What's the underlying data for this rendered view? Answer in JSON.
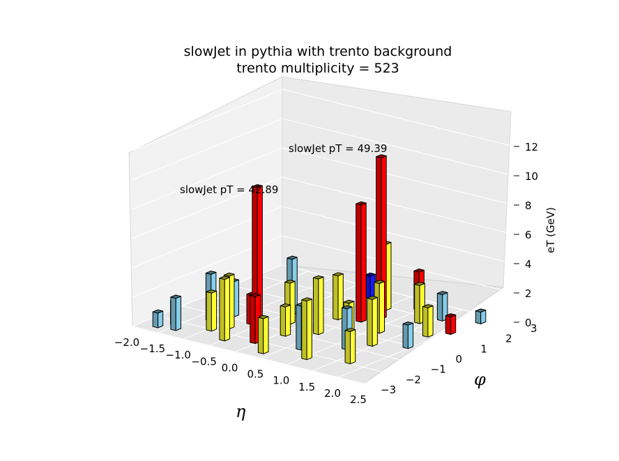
{
  "chart_data": {
    "type": "bar3d",
    "title": [
      "slowJet in pythia with trento background",
      "trento multiplicity = 523"
    ],
    "xlabel": "η",
    "ylabel": "φ",
    "zlabel": "eT (GeV)",
    "xlim": [
      -2.0,
      2.5
    ],
    "ylim": [
      -3,
      3
    ],
    "zlim": [
      0,
      12
    ],
    "xticks": [
      "−2.0",
      "−1.5",
      "−1.0",
      "−0.5",
      "0.0",
      "0.5",
      "1.0",
      "1.5",
      "2.0",
      "2.5"
    ],
    "yticks": [
      "−3",
      "−2",
      "−1",
      "0",
      "1",
      "2",
      "3"
    ],
    "zticks": [
      "0",
      "2",
      "4",
      "6",
      "8",
      "10",
      "12"
    ],
    "annotations": [
      {
        "text": "slowJet pT = 42.89",
        "eta": -0.3,
        "phi": 0.6,
        "z": 9.5
      },
      {
        "text": "slowJet pT = 49.39",
        "eta": 0.9,
        "phi": 1.3,
        "z": 11.0
      }
    ],
    "colors": {
      "background_soft": "#87ceeb",
      "background_hard": "#ffff33",
      "jet": "#ff0000",
      "other": "#1a1aff",
      "zero": "#a9a9a9"
    },
    "bars": [
      {
        "eta": -0.3,
        "phi": -1.5,
        "z": 10.0,
        "kind": "jet"
      },
      {
        "eta": 0.75,
        "phi": 1.3,
        "z": 11.0,
        "kind": "jet"
      },
      {
        "eta": 0.6,
        "phi": 0.8,
        "z": 8.0,
        "kind": "jet"
      },
      {
        "eta": 0.0,
        "phi": 2.4,
        "z": 1.5,
        "kind": "other"
      },
      {
        "eta": -1.7,
        "phi": -2.6,
        "z": 1.0,
        "kind": "background_soft"
      },
      {
        "eta": -1.55,
        "phi": -2.2,
        "z": 1.6,
        "kind": "background_soft"
      },
      {
        "eta": -1.4,
        "phi": -2.5,
        "z": 2.2,
        "kind": "background_soft"
      },
      {
        "eta": -1.25,
        "phi": -1.4,
        "z": 3.2,
        "kind": "background_soft"
      },
      {
        "eta": -1.1,
        "phi": -0.8,
        "z": 2.4,
        "kind": "background_soft"
      },
      {
        "eta": -0.95,
        "phi": -2.0,
        "z": 2.6,
        "kind": "background_hard"
      },
      {
        "eta": -0.8,
        "phi": -1.6,
        "z": 3.6,
        "kind": "background_hard"
      },
      {
        "eta": -0.65,
        "phi": -1.0,
        "z": 2.0,
        "kind": "jet"
      },
      {
        "eta": -0.5,
        "phi": -2.4,
        "z": 4.2,
        "kind": "background_hard"
      },
      {
        "eta": -0.45,
        "phi": 0.2,
        "z": 3.8,
        "kind": "background_soft"
      },
      {
        "eta": -0.2,
        "phi": -0.4,
        "z": 2.8,
        "kind": "background_hard"
      },
      {
        "eta": -0.05,
        "phi": -2.1,
        "z": 3.2,
        "kind": "jet"
      },
      {
        "eta": 0.1,
        "phi": -1.2,
        "z": 2.0,
        "kind": "background_hard"
      },
      {
        "eta": 0.25,
        "phi": 0.6,
        "z": 3.0,
        "kind": "background_hard"
      },
      {
        "eta": 0.35,
        "phi": -2.6,
        "z": 2.4,
        "kind": "background_hard"
      },
      {
        "eta": 0.45,
        "phi": -0.6,
        "z": 3.8,
        "kind": "background_hard"
      },
      {
        "eta": 0.55,
        "phi": 1.9,
        "z": 4.5,
        "kind": "background_hard"
      },
      {
        "eta": 0.7,
        "phi": -1.8,
        "z": 3.0,
        "kind": "background_soft"
      },
      {
        "eta": 0.85,
        "phi": -0.2,
        "z": 2.2,
        "kind": "background_hard"
      },
      {
        "eta": 0.95,
        "phi": 2.4,
        "z": 2.6,
        "kind": "jet"
      },
      {
        "eta": 1.05,
        "phi": -2.3,
        "z": 4.0,
        "kind": "background_hard"
      },
      {
        "eta": 1.15,
        "phi": 0.4,
        "z": 3.4,
        "kind": "background_hard"
      },
      {
        "eta": 1.25,
        "phi": -1.1,
        "z": 2.8,
        "kind": "background_soft"
      },
      {
        "eta": 1.35,
        "phi": 1.6,
        "z": 2.6,
        "kind": "background_hard"
      },
      {
        "eta": 1.45,
        "phi": -0.5,
        "z": 3.2,
        "kind": "background_hard"
      },
      {
        "eta": 1.55,
        "phi": 2.1,
        "z": 1.8,
        "kind": "background_soft"
      },
      {
        "eta": 1.7,
        "phi": -1.9,
        "z": 2.2,
        "kind": "background_hard"
      },
      {
        "eta": 1.85,
        "phi": 0.9,
        "z": 2.0,
        "kind": "background_hard"
      },
      {
        "eta": 1.95,
        "phi": -0.1,
        "z": 1.6,
        "kind": "background_soft"
      },
      {
        "eta": 2.05,
        "phi": 1.4,
        "z": 1.2,
        "kind": "jet"
      },
      {
        "eta": 2.1,
        "phi": 2.5,
        "z": 0.8,
        "kind": "background_soft"
      }
    ]
  }
}
